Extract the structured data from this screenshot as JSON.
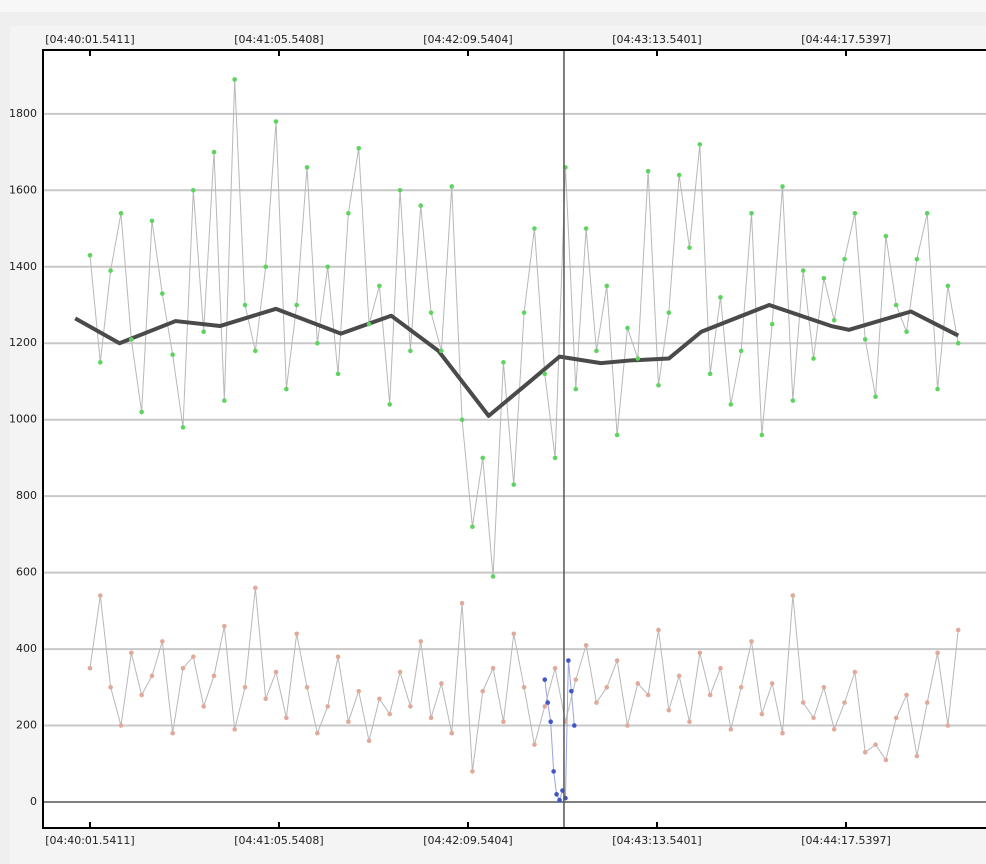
{
  "chart_data": {
    "type": "line",
    "xlim": [
      -15.9,
      303.4
    ],
    "ylim": [
      -68,
      1967
    ],
    "xticks": [
      {
        "value": 0,
        "label": "[04:40:01.5411]"
      },
      {
        "value": 64,
        "label": "[04:41:05.5408]"
      },
      {
        "value": 128,
        "label": "[04:42:09.5404]"
      },
      {
        "value": 192,
        "label": "[04:43:13.5401]"
      },
      {
        "value": 256,
        "label": "[04:44:17.5397]"
      }
    ],
    "yticks": [
      0,
      200,
      400,
      600,
      800,
      1000,
      1200,
      1400,
      1600,
      1800
    ],
    "grid": true,
    "cursor_x": 160.5,
    "x": [
      0,
      3.5,
      7,
      10.5,
      14,
      17.5,
      21,
      24.5,
      28,
      31.5,
      35,
      38.5,
      42,
      45.5,
      49,
      52.5,
      56,
      59.5,
      63,
      66.5,
      70,
      73.5,
      77,
      80.5,
      84,
      87.5,
      91,
      94.5,
      98,
      101.5,
      105,
      108.5,
      112,
      115.5,
      119,
      122.5,
      126,
      129.5,
      133,
      136.5,
      140,
      143.5,
      147,
      150.5,
      154,
      157.5,
      161,
      164.5,
      168,
      171.5,
      175,
      178.5,
      182,
      185.5,
      189,
      192.5,
      196,
      199.5,
      203,
      206.5,
      210,
      213.5,
      217,
      220.5,
      224,
      227.5,
      231,
      234.5,
      238,
      241.5,
      245,
      248.5,
      252,
      255.5,
      259,
      262.5,
      266,
      269.5,
      273,
      276.5,
      280,
      283.5,
      287,
      290.5,
      294
    ],
    "series": [
      {
        "color": "#5fd35f",
        "line_color": "#b8b8b8",
        "marker": true,
        "line_width": 1,
        "values": [
          1430,
          1150,
          1390,
          1540,
          1210,
          1020,
          1520,
          1330,
          1170,
          980,
          1600,
          1230,
          1700,
          1050,
          1890,
          1300,
          1180,
          1400,
          1780,
          1080,
          1300,
          1660,
          1200,
          1400,
          1120,
          1540,
          1710,
          1250,
          1350,
          1040,
          1600,
          1180,
          1560,
          1280,
          1180,
          1610,
          1000,
          720,
          900,
          590,
          1150,
          830,
          1280,
          1500,
          1120,
          900,
          1660,
          1080,
          1500,
          1180,
          1350,
          960,
          1240,
          1160,
          1650,
          1090,
          1280,
          1640,
          1450,
          1720,
          1120,
          1320,
          1040,
          1180,
          1540,
          960,
          1250,
          1610,
          1050,
          1390,
          1160,
          1370,
          1260,
          1420,
          1540,
          1210,
          1060,
          1480,
          1300,
          1230,
          1420,
          1540,
          1080,
          1350,
          1200
        ]
      },
      {
        "color": "#e2a99a",
        "line_color": "#b8b8b8",
        "marker": true,
        "line_width": 1,
        "values": [
          350,
          540,
          300,
          200,
          390,
          280,
          330,
          420,
          180,
          350,
          380,
          250,
          330,
          460,
          190,
          300,
          560,
          270,
          340,
          220,
          440,
          300,
          180,
          250,
          380,
          210,
          290,
          160,
          270,
          230,
          340,
          250,
          420,
          220,
          310,
          180,
          520,
          80,
          290,
          350,
          210,
          440,
          300,
          150,
          250,
          350,
          210,
          320,
          410,
          260,
          300,
          370,
          200,
          310,
          280,
          450,
          240,
          330,
          210,
          390,
          280,
          350,
          190,
          300,
          420,
          230,
          310,
          180,
          540,
          260,
          220,
          300,
          190,
          260,
          340,
          130,
          150,
          110,
          220,
          280,
          120,
          260,
          390,
          200,
          450
        ]
      },
      {
        "color": "#3f55c8",
        "line_color": "#9aa4dd",
        "marker": true,
        "line_width": 1,
        "x": [
          154,
          155,
          156,
          157,
          158,
          159,
          160,
          161,
          162,
          163,
          164
        ],
        "values": [
          320,
          260,
          210,
          80,
          20,
          5,
          30,
          10,
          370,
          290,
          200
        ]
      },
      {
        "color": "#4a4a4a",
        "marker": false,
        "line_width": 4,
        "x": [
          -5,
          10,
          29,
          44,
          63,
          85,
          102,
          118,
          135,
          149,
          159,
          173,
          183,
          196,
          207,
          230,
          251,
          257,
          278,
          294
        ],
        "values": [
          1265,
          1200,
          1258,
          1245,
          1290,
          1225,
          1272,
          1180,
          1010,
          1100,
          1165,
          1148,
          1155,
          1160,
          1230,
          1300,
          1245,
          1235,
          1283,
          1220
        ]
      }
    ]
  }
}
